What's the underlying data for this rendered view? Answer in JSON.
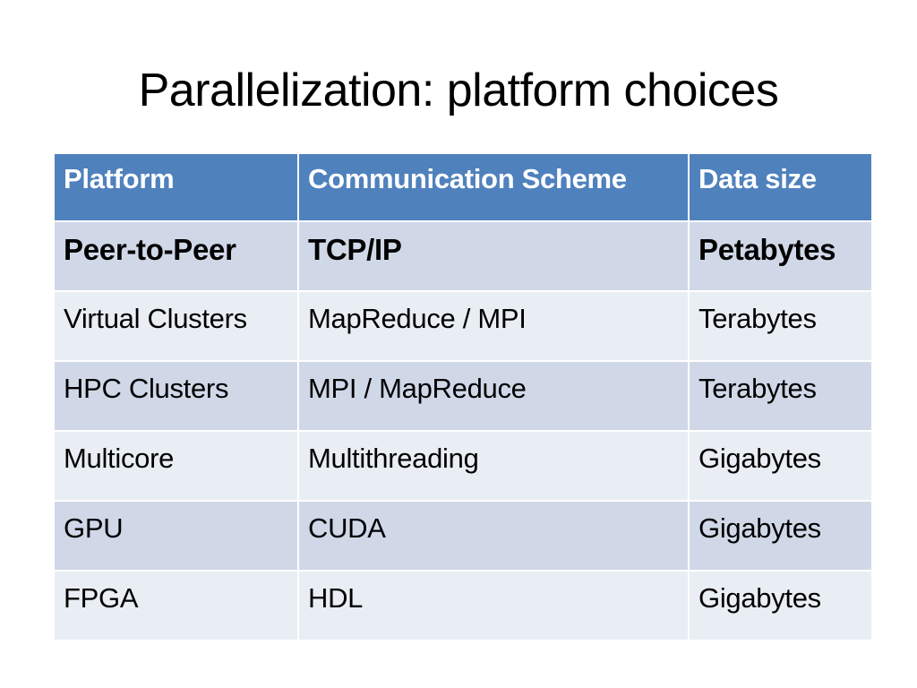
{
  "slide": {
    "title": "Parallelization: platform choices"
  },
  "table": {
    "headers": [
      "Platform",
      "Communication Scheme",
      "Data size"
    ],
    "rows": [
      [
        "Peer-to-Peer",
        "TCP/IP",
        "Petabytes"
      ],
      [
        "Virtual Clusters",
        "MapReduce / MPI",
        "Terabytes"
      ],
      [
        "HPC Clusters",
        "MPI / MapReduce",
        "Terabytes"
      ],
      [
        "Multicore",
        "Multithreading",
        "Gigabytes"
      ],
      [
        "GPU",
        "CUDA",
        "Gigabytes"
      ],
      [
        "FPGA",
        "HDL",
        "Gigabytes"
      ]
    ],
    "header_color": "#4f81bd",
    "row_color_odd": "#d0d8e8",
    "row_color_even": "#e9edf4"
  }
}
